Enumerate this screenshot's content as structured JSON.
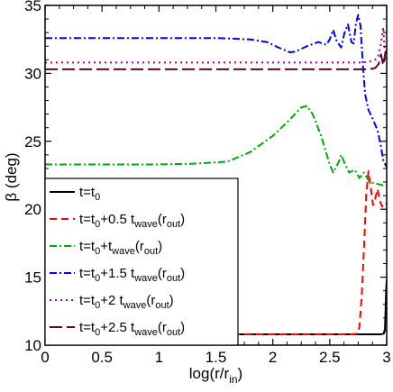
{
  "chart_data": {
    "type": "line",
    "xlabel": "log(r/r",
    "xlabel_sub": "in",
    "xlabel_close": ")",
    "ylabel": "β (deg)",
    "xlim": [
      0,
      3
    ],
    "ylim": [
      10,
      35
    ],
    "xticks": [
      0,
      0.5,
      1,
      1.5,
      2,
      2.5,
      3
    ],
    "xtick_labels": [
      "0",
      "0.5",
      "1",
      "1.5",
      "2",
      "2.5",
      "3"
    ],
    "yticks": [
      10,
      15,
      20,
      25,
      30,
      35
    ],
    "ytick_labels": [
      "10",
      "15",
      "20",
      "25",
      "30",
      "35"
    ],
    "grid": false,
    "legend_position": "lower-left",
    "series": [
      {
        "name": "t=t0",
        "legend": [
          {
            "t": "t=t"
          },
          {
            "t": "0",
            "sub": true
          }
        ],
        "color": "#000000",
        "dash": "",
        "points": [
          [
            0,
            10.8
          ],
          [
            2.5,
            10.8
          ],
          [
            2.95,
            10.8
          ],
          [
            2.975,
            10.85
          ],
          [
            2.985,
            11.2
          ],
          [
            2.99,
            12.5
          ],
          [
            2.995,
            14.0
          ],
          [
            3.0,
            14.8
          ]
        ]
      },
      {
        "name": "t=t0+0.5 twave(rout)",
        "legend": [
          {
            "t": "t=t"
          },
          {
            "t": "0",
            "sub": true
          },
          {
            "t": "+0.5 t"
          },
          {
            "t": "wave",
            "sub": true
          },
          {
            "t": "(r"
          },
          {
            "t": "out",
            "sub": true
          },
          {
            "t": ")"
          }
        ],
        "color": "#ff0000",
        "dash": "8,5",
        "points": [
          [
            0,
            10.8
          ],
          [
            2.7,
            10.8
          ],
          [
            2.74,
            10.85
          ],
          [
            2.76,
            11.3
          ],
          [
            2.78,
            13.5
          ],
          [
            2.8,
            17.0
          ],
          [
            2.82,
            21.0
          ],
          [
            2.84,
            22.8
          ],
          [
            2.86,
            21.6
          ],
          [
            2.88,
            20.3
          ],
          [
            2.9,
            20.8
          ],
          [
            2.92,
            21.5
          ],
          [
            2.94,
            20.6
          ],
          [
            2.96,
            20.2
          ],
          [
            2.98,
            20.5
          ],
          [
            3.0,
            20.4
          ]
        ]
      },
      {
        "name": "t=t0+twave(rout)",
        "legend": [
          {
            "t": "t=t"
          },
          {
            "t": "0",
            "sub": true
          },
          {
            "t": "+t"
          },
          {
            "t": "wave",
            "sub": true
          },
          {
            "t": "(r"
          },
          {
            "t": "out",
            "sub": true
          },
          {
            "t": ")"
          }
        ],
        "color": "#00aa00",
        "dash": "8,3,2,3",
        "points": [
          [
            0,
            23.3
          ],
          [
            1.0,
            23.3
          ],
          [
            1.3,
            23.35
          ],
          [
            1.6,
            23.5
          ],
          [
            1.8,
            24.2
          ],
          [
            2.0,
            25.4
          ],
          [
            2.15,
            26.6
          ],
          [
            2.25,
            27.5
          ],
          [
            2.3,
            27.6
          ],
          [
            2.35,
            27.0
          ],
          [
            2.42,
            25.5
          ],
          [
            2.5,
            23.3
          ],
          [
            2.53,
            22.7
          ],
          [
            2.58,
            23.5
          ],
          [
            2.6,
            24.0
          ],
          [
            2.63,
            23.4
          ],
          [
            2.67,
            22.7
          ],
          [
            2.72,
            22.9
          ],
          [
            2.76,
            22.3
          ],
          [
            2.8,
            22.7
          ],
          [
            2.85,
            22.0
          ],
          [
            2.9,
            21.9
          ],
          [
            2.95,
            21.8
          ],
          [
            3.0,
            21.7
          ]
        ]
      },
      {
        "name": "t=t0+1.5 twave(rout)",
        "legend": [
          {
            "t": "t=t"
          },
          {
            "t": "0",
            "sub": true
          },
          {
            "t": "+1.5 t"
          },
          {
            "t": "wave",
            "sub": true
          },
          {
            "t": "(r"
          },
          {
            "t": "out",
            "sub": true
          },
          {
            "t": ")"
          }
        ],
        "color": "#0000ff",
        "dash": "8,3,2,3",
        "points": [
          [
            0,
            32.6
          ],
          [
            1.5,
            32.6
          ],
          [
            1.8,
            32.5
          ],
          [
            1.95,
            32.3
          ],
          [
            2.05,
            31.9
          ],
          [
            2.15,
            31.55
          ],
          [
            2.2,
            31.6
          ],
          [
            2.3,
            32.0
          ],
          [
            2.4,
            32.3
          ],
          [
            2.47,
            32.1
          ],
          [
            2.5,
            32.5
          ],
          [
            2.53,
            33.2
          ],
          [
            2.56,
            32.4
          ],
          [
            2.6,
            31.9
          ],
          [
            2.63,
            33.0
          ],
          [
            2.66,
            33.6
          ],
          [
            2.69,
            32.3
          ],
          [
            2.71,
            32.2
          ],
          [
            2.73,
            33.7
          ],
          [
            2.75,
            34.3
          ],
          [
            2.77,
            33.5
          ],
          [
            2.79,
            30.7
          ],
          [
            2.81,
            28.5
          ],
          [
            2.84,
            27.3
          ],
          [
            2.88,
            26.6
          ],
          [
            2.92,
            25.8
          ],
          [
            2.95,
            24.6
          ],
          [
            2.97,
            23.6
          ],
          [
            3.0,
            23.1
          ]
        ]
      },
      {
        "name": "t=t0+2 twave(rout)",
        "legend": [
          {
            "t": "t=t"
          },
          {
            "t": "0",
            "sub": true
          },
          {
            "t": "+2 t"
          },
          {
            "t": "wave",
            "sub": true
          },
          {
            "t": "(r"
          },
          {
            "t": "out",
            "sub": true
          },
          {
            "t": ")"
          }
        ],
        "color": "#aa00aa",
        "dash": "2,4",
        "points": [
          [
            0,
            30.8
          ],
          [
            2.8,
            30.8
          ],
          [
            2.87,
            30.9
          ],
          [
            2.92,
            31.1
          ],
          [
            2.95,
            32.2
          ],
          [
            2.97,
            33.4
          ],
          [
            2.98,
            32.0
          ],
          [
            3.0,
            31.0
          ]
        ]
      },
      {
        "name": "t=t0+2.5 twave(rout)",
        "legend": [
          {
            "t": "t=t"
          },
          {
            "t": "0",
            "sub": true
          },
          {
            "t": "+2.5 t"
          },
          {
            "t": "wave",
            "sub": true
          },
          {
            "t": "(r"
          },
          {
            "t": "out",
            "sub": true
          },
          {
            "t": ")"
          }
        ],
        "color": "#660033",
        "dash": "14,5",
        "points": [
          [
            0,
            30.3
          ],
          [
            2.85,
            30.3
          ],
          [
            2.9,
            30.4
          ],
          [
            2.93,
            30.7
          ],
          [
            2.95,
            31.4
          ],
          [
            2.97,
            30.6
          ],
          [
            2.99,
            31.6
          ],
          [
            3.0,
            31.2
          ]
        ]
      }
    ]
  }
}
